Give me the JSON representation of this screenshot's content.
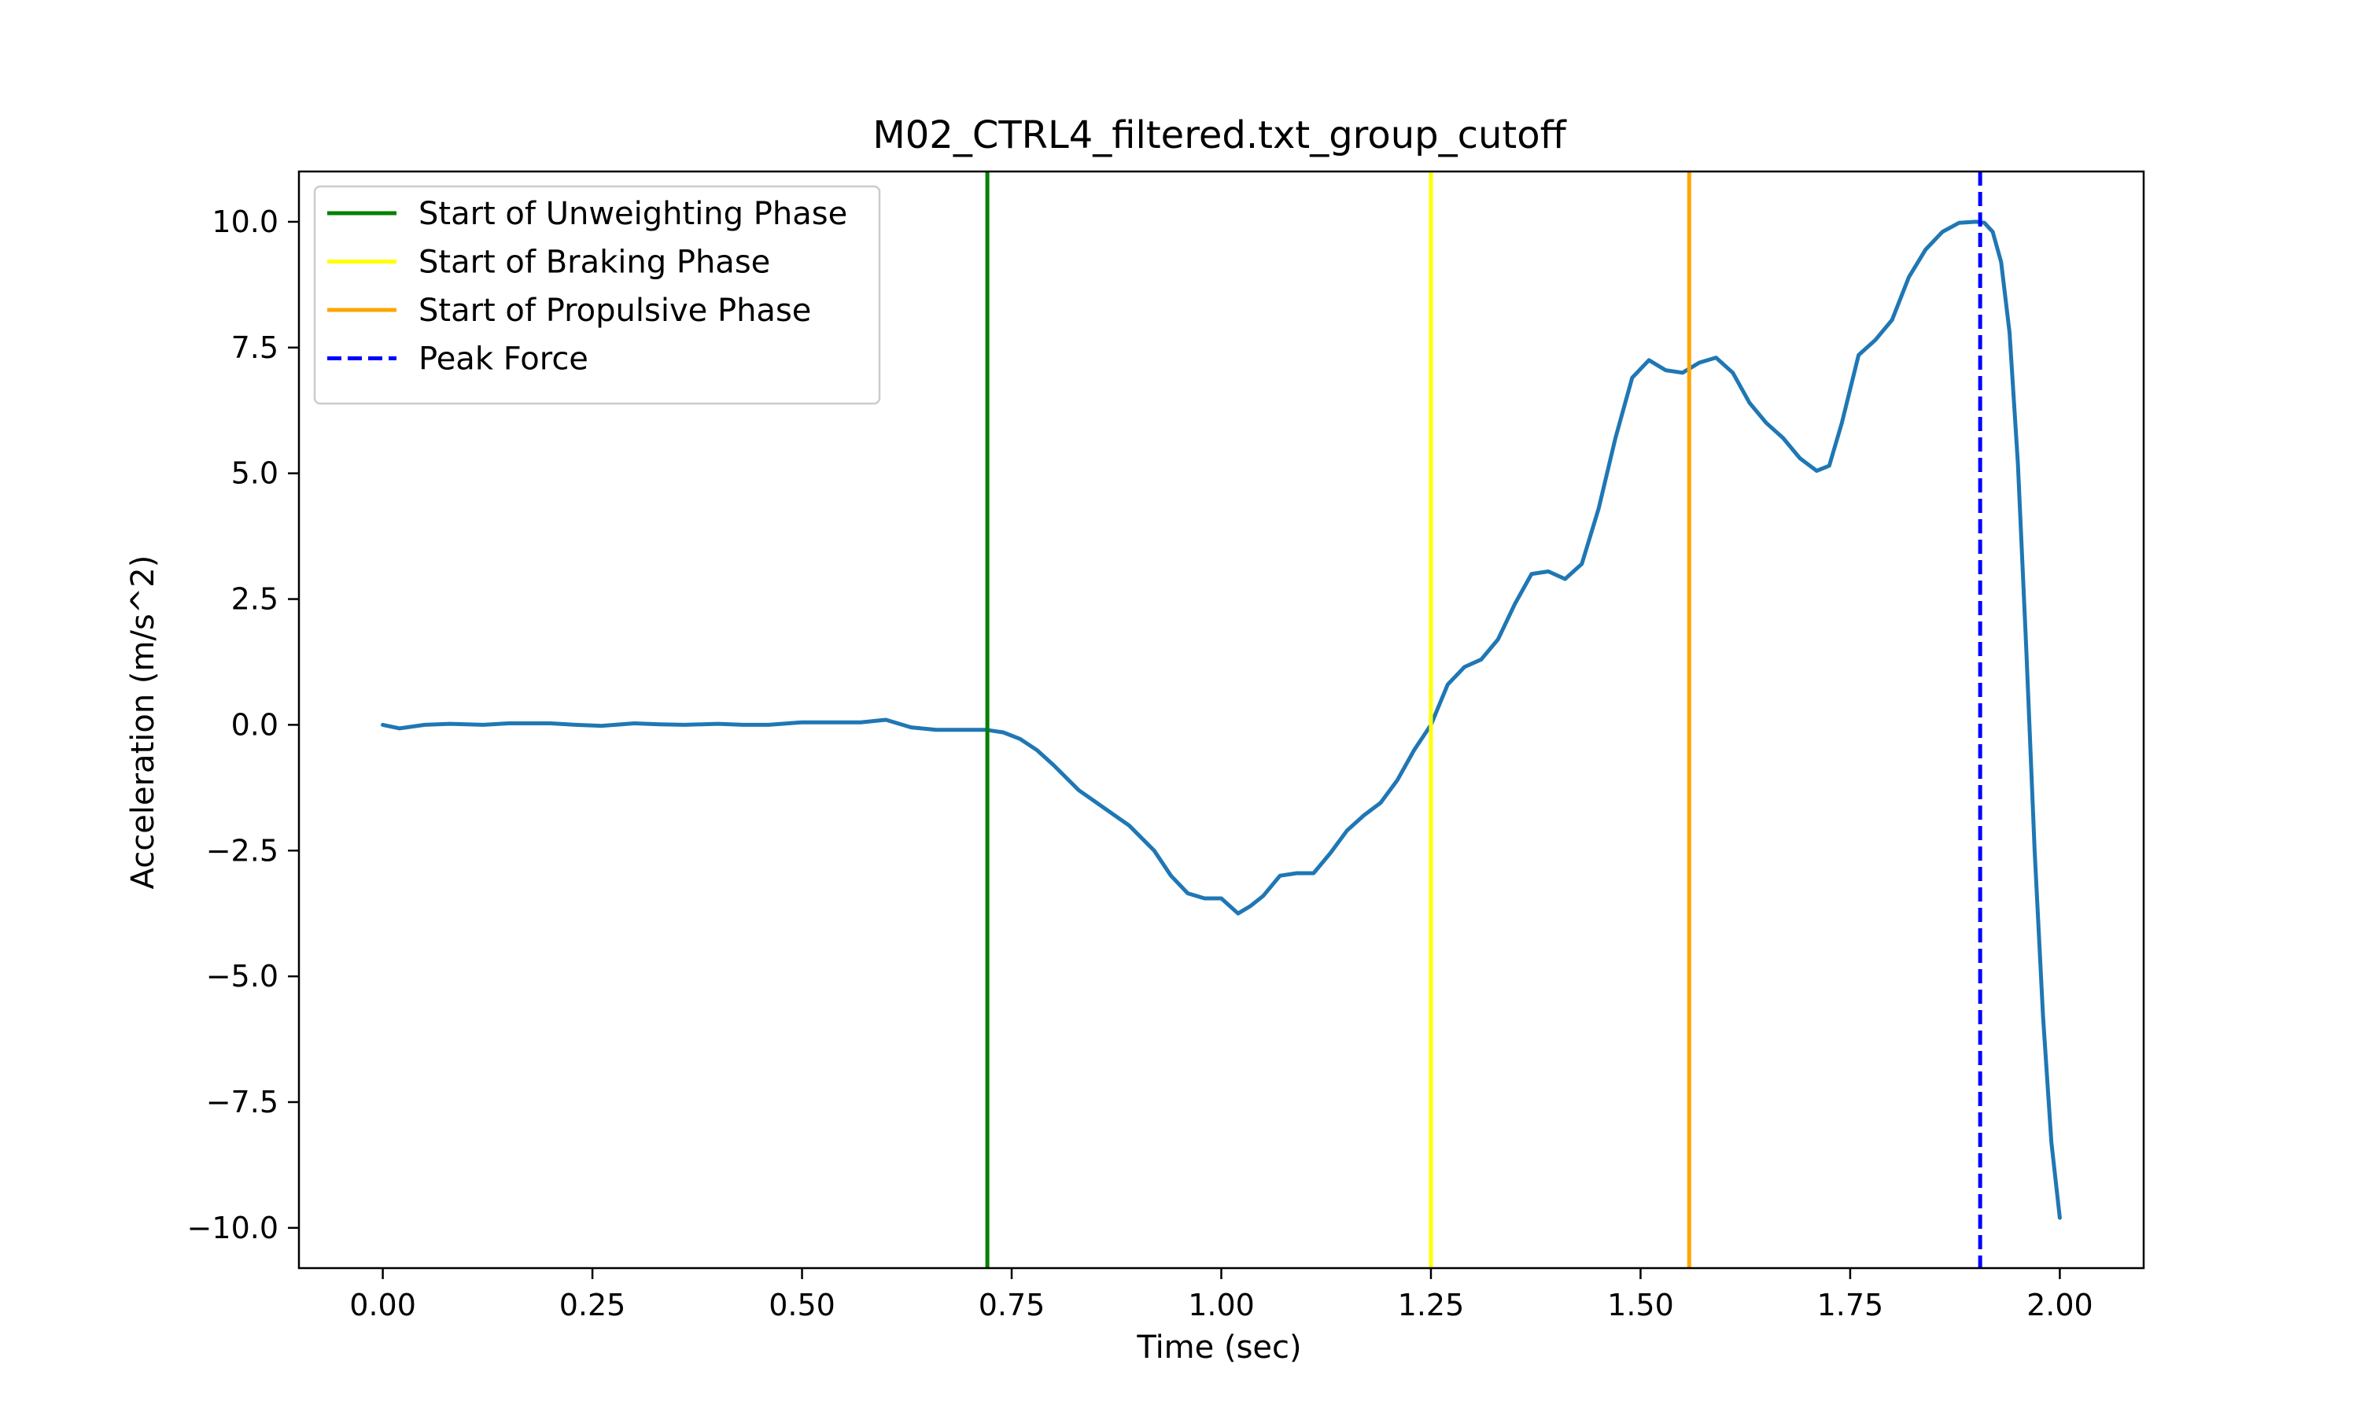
{
  "chart_data": {
    "type": "line",
    "title": "M02_CTRL4_filtered.txt_group_cutoff",
    "xlabel": "Time (sec)",
    "ylabel": "Acceleration (m/s^2)",
    "xlim": [
      -0.1,
      2.1
    ],
    "ylim": [
      -10.8,
      11.0
    ],
    "x_ticks": [
      0.0,
      0.25,
      0.5,
      0.75,
      1.0,
      1.25,
      1.5,
      1.75,
      2.0
    ],
    "x_tick_labels": [
      "0.00",
      "0.25",
      "0.50",
      "0.75",
      "1.00",
      "1.25",
      "1.50",
      "1.75",
      "2.00"
    ],
    "y_ticks": [
      10.0,
      7.5,
      5.0,
      2.5,
      0.0,
      -2.5,
      -5.0,
      -7.5,
      -10.0
    ],
    "y_tick_labels": [
      "10.0",
      "7.5",
      "5.0",
      "2.5",
      "0.0",
      "−2.5",
      "−5.0",
      "−7.5",
      "−10.0"
    ],
    "grid": false,
    "legend_position": "top-left",
    "series": [
      {
        "color": "#1f77b4",
        "x": [
          0.0,
          0.02,
          0.05,
          0.08,
          0.12,
          0.15,
          0.2,
          0.23,
          0.26,
          0.3,
          0.33,
          0.36,
          0.4,
          0.43,
          0.46,
          0.5,
          0.54,
          0.57,
          0.6,
          0.63,
          0.66,
          0.69,
          0.72,
          0.74,
          0.76,
          0.78,
          0.8,
          0.83,
          0.86,
          0.89,
          0.92,
          0.94,
          0.96,
          0.98,
          1.0,
          1.02,
          1.035,
          1.05,
          1.07,
          1.09,
          1.11,
          1.13,
          1.15,
          1.17,
          1.19,
          1.21,
          1.23,
          1.25,
          1.27,
          1.29,
          1.31,
          1.33,
          1.35,
          1.37,
          1.39,
          1.41,
          1.43,
          1.45,
          1.47,
          1.49,
          1.51,
          1.53,
          1.55,
          1.57,
          1.59,
          1.61,
          1.63,
          1.65,
          1.67,
          1.69,
          1.71,
          1.725,
          1.74,
          1.76,
          1.78,
          1.8,
          1.82,
          1.84,
          1.86,
          1.88,
          1.9,
          1.91,
          1.92,
          1.93,
          1.94,
          1.95,
          1.96,
          1.97,
          1.98,
          1.99,
          2.0
        ],
        "y": [
          0.0,
          -0.07,
          0.0,
          0.02,
          0.0,
          0.03,
          0.03,
          0.0,
          -0.02,
          0.03,
          0.01,
          0.0,
          0.02,
          0.0,
          0.0,
          0.05,
          0.05,
          0.05,
          0.1,
          -0.05,
          -0.1,
          -0.1,
          -0.1,
          -0.15,
          -0.28,
          -0.5,
          -0.8,
          -1.3,
          -1.65,
          -2.0,
          -2.5,
          -3.0,
          -3.35,
          -3.45,
          -3.45,
          -3.75,
          -3.6,
          -3.4,
          -3.0,
          -2.95,
          -2.95,
          -2.55,
          -2.1,
          -1.8,
          -1.55,
          -1.1,
          -0.5,
          0.0,
          0.8,
          1.15,
          1.3,
          1.7,
          2.4,
          3.0,
          3.05,
          2.9,
          3.2,
          4.3,
          5.7,
          6.9,
          7.25,
          7.05,
          7.0,
          7.2,
          7.3,
          7.0,
          6.4,
          6.0,
          5.7,
          5.3,
          5.05,
          5.15,
          6.0,
          7.35,
          7.65,
          8.05,
          8.9,
          9.45,
          9.8,
          9.98,
          10.0,
          9.98,
          9.8,
          9.2,
          7.8,
          5.2,
          1.5,
          -2.5,
          -5.8,
          -8.3,
          -9.8
        ]
      }
    ],
    "markers": [
      {
        "name": "Start of Unweighting Phase",
        "x": 0.721,
        "color": "#008000",
        "style": "solid"
      },
      {
        "name": "Start of Braking Phase",
        "x": 1.25,
        "color": "#ffff00",
        "style": "solid"
      },
      {
        "name": "Start of Propulsive Phase",
        "x": 1.558,
        "color": "#ffa500",
        "style": "solid"
      },
      {
        "name": "Peak Force",
        "x": 1.905,
        "color": "#0000ff",
        "style": "dashed"
      }
    ]
  }
}
